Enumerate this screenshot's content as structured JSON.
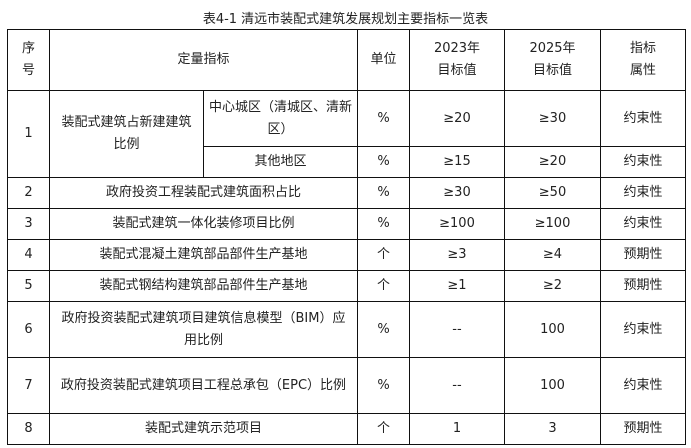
{
  "title": "表4-1 清远市装配式建筑发展规划主要指标一览表",
  "headers": {
    "no": "序号",
    "indicator": "定量指标",
    "unit": "单位",
    "target_2023": "2023年目标值",
    "target_2025": "2025年目标值",
    "attribute": "指标属性"
  },
  "rows": [
    {
      "no": "1",
      "indicator": "装配式建筑占新建建筑比例",
      "sub": [
        {
          "area": "中心城区（清城区、清新区）",
          "unit": "%",
          "t2023": "≥20",
          "t2025": "≥30",
          "attr": "约束性"
        },
        {
          "area": "其他地区",
          "unit": "%",
          "t2023": "≥15",
          "t2025": "≥20",
          "attr": "约束性"
        }
      ]
    },
    {
      "no": "2",
      "indicator": "政府投资工程装配式建筑面积占比",
      "unit": "%",
      "t2023": "≥30",
      "t2025": "≥50",
      "attr": "约束性"
    },
    {
      "no": "3",
      "indicator": "装配式建筑一体化装修项目比例",
      "unit": "%",
      "t2023": "≥100",
      "t2025": "≥100",
      "attr": "约束性"
    },
    {
      "no": "4",
      "indicator": "装配式混凝土建筑部品部件生产基地",
      "unit": "个",
      "t2023": "≥3",
      "t2025": "≥4",
      "attr": "预期性"
    },
    {
      "no": "5",
      "indicator": "装配式钢结构建筑部品部件生产基地",
      "unit": "个",
      "t2023": "≥1",
      "t2025": "≥2",
      "attr": "预期性"
    },
    {
      "no": "6",
      "indicator": "政府投资装配式建筑项目建筑信息模型（BIM）应用比例",
      "unit": "%",
      "t2023": "--",
      "t2025": "100",
      "attr": "约束性"
    },
    {
      "no": "7",
      "indicator": "政府投资装配式建筑项目工程总承包（EPC）比例",
      "unit": "%",
      "t2023": "--",
      "t2025": "100",
      "attr": "约束性"
    },
    {
      "no": "8",
      "indicator": "装配式建筑示范项目",
      "unit": "个",
      "t2023": "1",
      "t2025": "3",
      "attr": "预期性"
    }
  ]
}
